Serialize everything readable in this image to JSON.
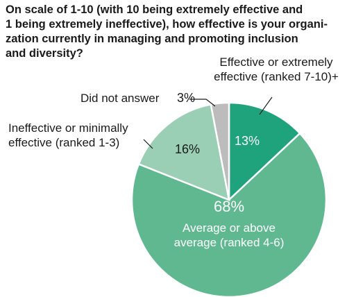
{
  "title_lines": [
    "On scale of 1-10 (with 10 being extremely effective and",
    "1 being extremely ineffective), how effective is your organi-",
    "zation currently in managing and promoting inclusion",
    "and diversity?"
  ],
  "chart_data": {
    "type": "pie",
    "slices": [
      {
        "label_lines": [
          "Effective or extremely",
          "effective (ranked 7-10)+"
        ],
        "value": 13,
        "value_label": "13%",
        "color": "#1fa37c"
      },
      {
        "label_lines": [
          "Average or above",
          "average (ranked 4-6)"
        ],
        "value": 68,
        "value_label": "68%",
        "color": "#5fb890"
      },
      {
        "label_lines": [
          "Ineffective or minimally",
          "effective (ranked 1-3)"
        ],
        "value": 16,
        "value_label": "16%",
        "color": "#9acfb5"
      },
      {
        "label_lines": [
          "Did not answer"
        ],
        "value": 3,
        "value_label": "3%",
        "color": "#bcbcbc"
      }
    ]
  }
}
